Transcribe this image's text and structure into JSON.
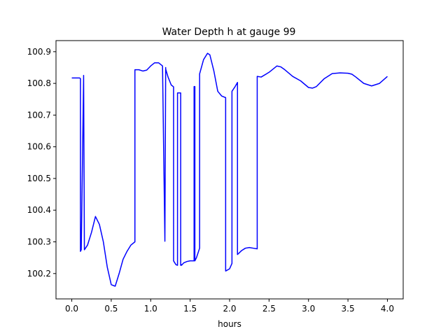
{
  "chart_data": {
    "type": "line",
    "title": "Water Depth h at gauge 99",
    "xlabel": "hours",
    "ylabel": "",
    "xlim": [
      -0.2,
      4.2
    ],
    "ylim": [
      100.12,
      100.935
    ],
    "xticks": [
      0.0,
      0.5,
      1.0,
      1.5,
      2.0,
      2.5,
      3.0,
      3.5,
      4.0
    ],
    "xtick_labels": [
      "0.0",
      "0.5",
      "1.0",
      "1.5",
      "2.0",
      "2.5",
      "3.0",
      "3.5",
      "4.0"
    ],
    "yticks": [
      100.2,
      100.3,
      100.4,
      100.5,
      100.6,
      100.7,
      100.8,
      100.9
    ],
    "ytick_labels": [
      "100.2",
      "100.3",
      "100.4",
      "100.5",
      "100.6",
      "100.7",
      "100.8",
      "100.9"
    ],
    "grid": false,
    "series": [
      {
        "color": "#0000ff",
        "x": [
          0.0,
          0.1,
          0.11,
          0.11,
          0.12,
          0.15,
          0.15,
          0.16,
          0.2,
          0.25,
          0.3,
          0.35,
          0.4,
          0.45,
          0.5,
          0.55,
          0.6,
          0.65,
          0.7,
          0.75,
          0.8,
          0.8,
          0.85,
          0.9,
          0.95,
          1.0,
          1.05,
          1.1,
          1.15,
          1.18,
          1.18,
          1.19,
          1.19,
          1.22,
          1.26,
          1.29,
          1.29,
          1.32,
          1.34,
          1.34,
          1.38,
          1.38,
          1.39,
          1.39,
          1.42,
          1.46,
          1.5,
          1.55,
          1.55,
          1.56,
          1.56,
          1.58,
          1.62,
          1.62,
          1.67,
          1.72,
          1.75,
          1.8,
          1.85,
          1.9,
          1.95,
          1.95,
          2.0,
          2.03,
          2.03,
          2.07,
          2.1,
          2.1,
          2.15,
          2.2,
          2.25,
          2.3,
          2.35,
          2.35,
          2.4,
          2.5,
          2.6,
          2.65,
          2.7,
          2.8,
          2.9,
          3.0,
          3.05,
          3.1,
          3.2,
          3.3,
          3.4,
          3.5,
          3.55,
          3.6,
          3.7,
          3.8,
          3.9,
          4.0
        ],
        "y": [
          100.817,
          100.817,
          100.815,
          100.27,
          100.275,
          100.822,
          100.825,
          100.275,
          100.29,
          100.33,
          100.38,
          100.355,
          100.3,
          100.22,
          100.165,
          100.16,
          100.2,
          100.245,
          100.27,
          100.29,
          100.3,
          100.843,
          100.843,
          100.839,
          100.842,
          100.855,
          100.865,
          100.865,
          100.855,
          100.305,
          100.302,
          100.85,
          100.845,
          100.82,
          100.795,
          100.789,
          100.24,
          100.228,
          100.226,
          100.77,
          100.77,
          100.226,
          100.228,
          100.226,
          100.234,
          100.238,
          100.24,
          100.24,
          100.79,
          100.79,
          100.24,
          100.25,
          100.28,
          100.83,
          100.875,
          100.895,
          100.89,
          100.84,
          100.775,
          100.76,
          100.755,
          100.208,
          100.215,
          100.232,
          100.775,
          100.79,
          100.803,
          100.26,
          100.272,
          100.28,
          100.282,
          100.28,
          100.278,
          100.822,
          100.82,
          100.835,
          100.855,
          100.852,
          100.843,
          100.822,
          100.808,
          100.787,
          100.785,
          100.79,
          100.815,
          100.831,
          100.833,
          100.832,
          100.829,
          100.82,
          100.8,
          100.792,
          100.8,
          100.822
        ]
      }
    ]
  }
}
